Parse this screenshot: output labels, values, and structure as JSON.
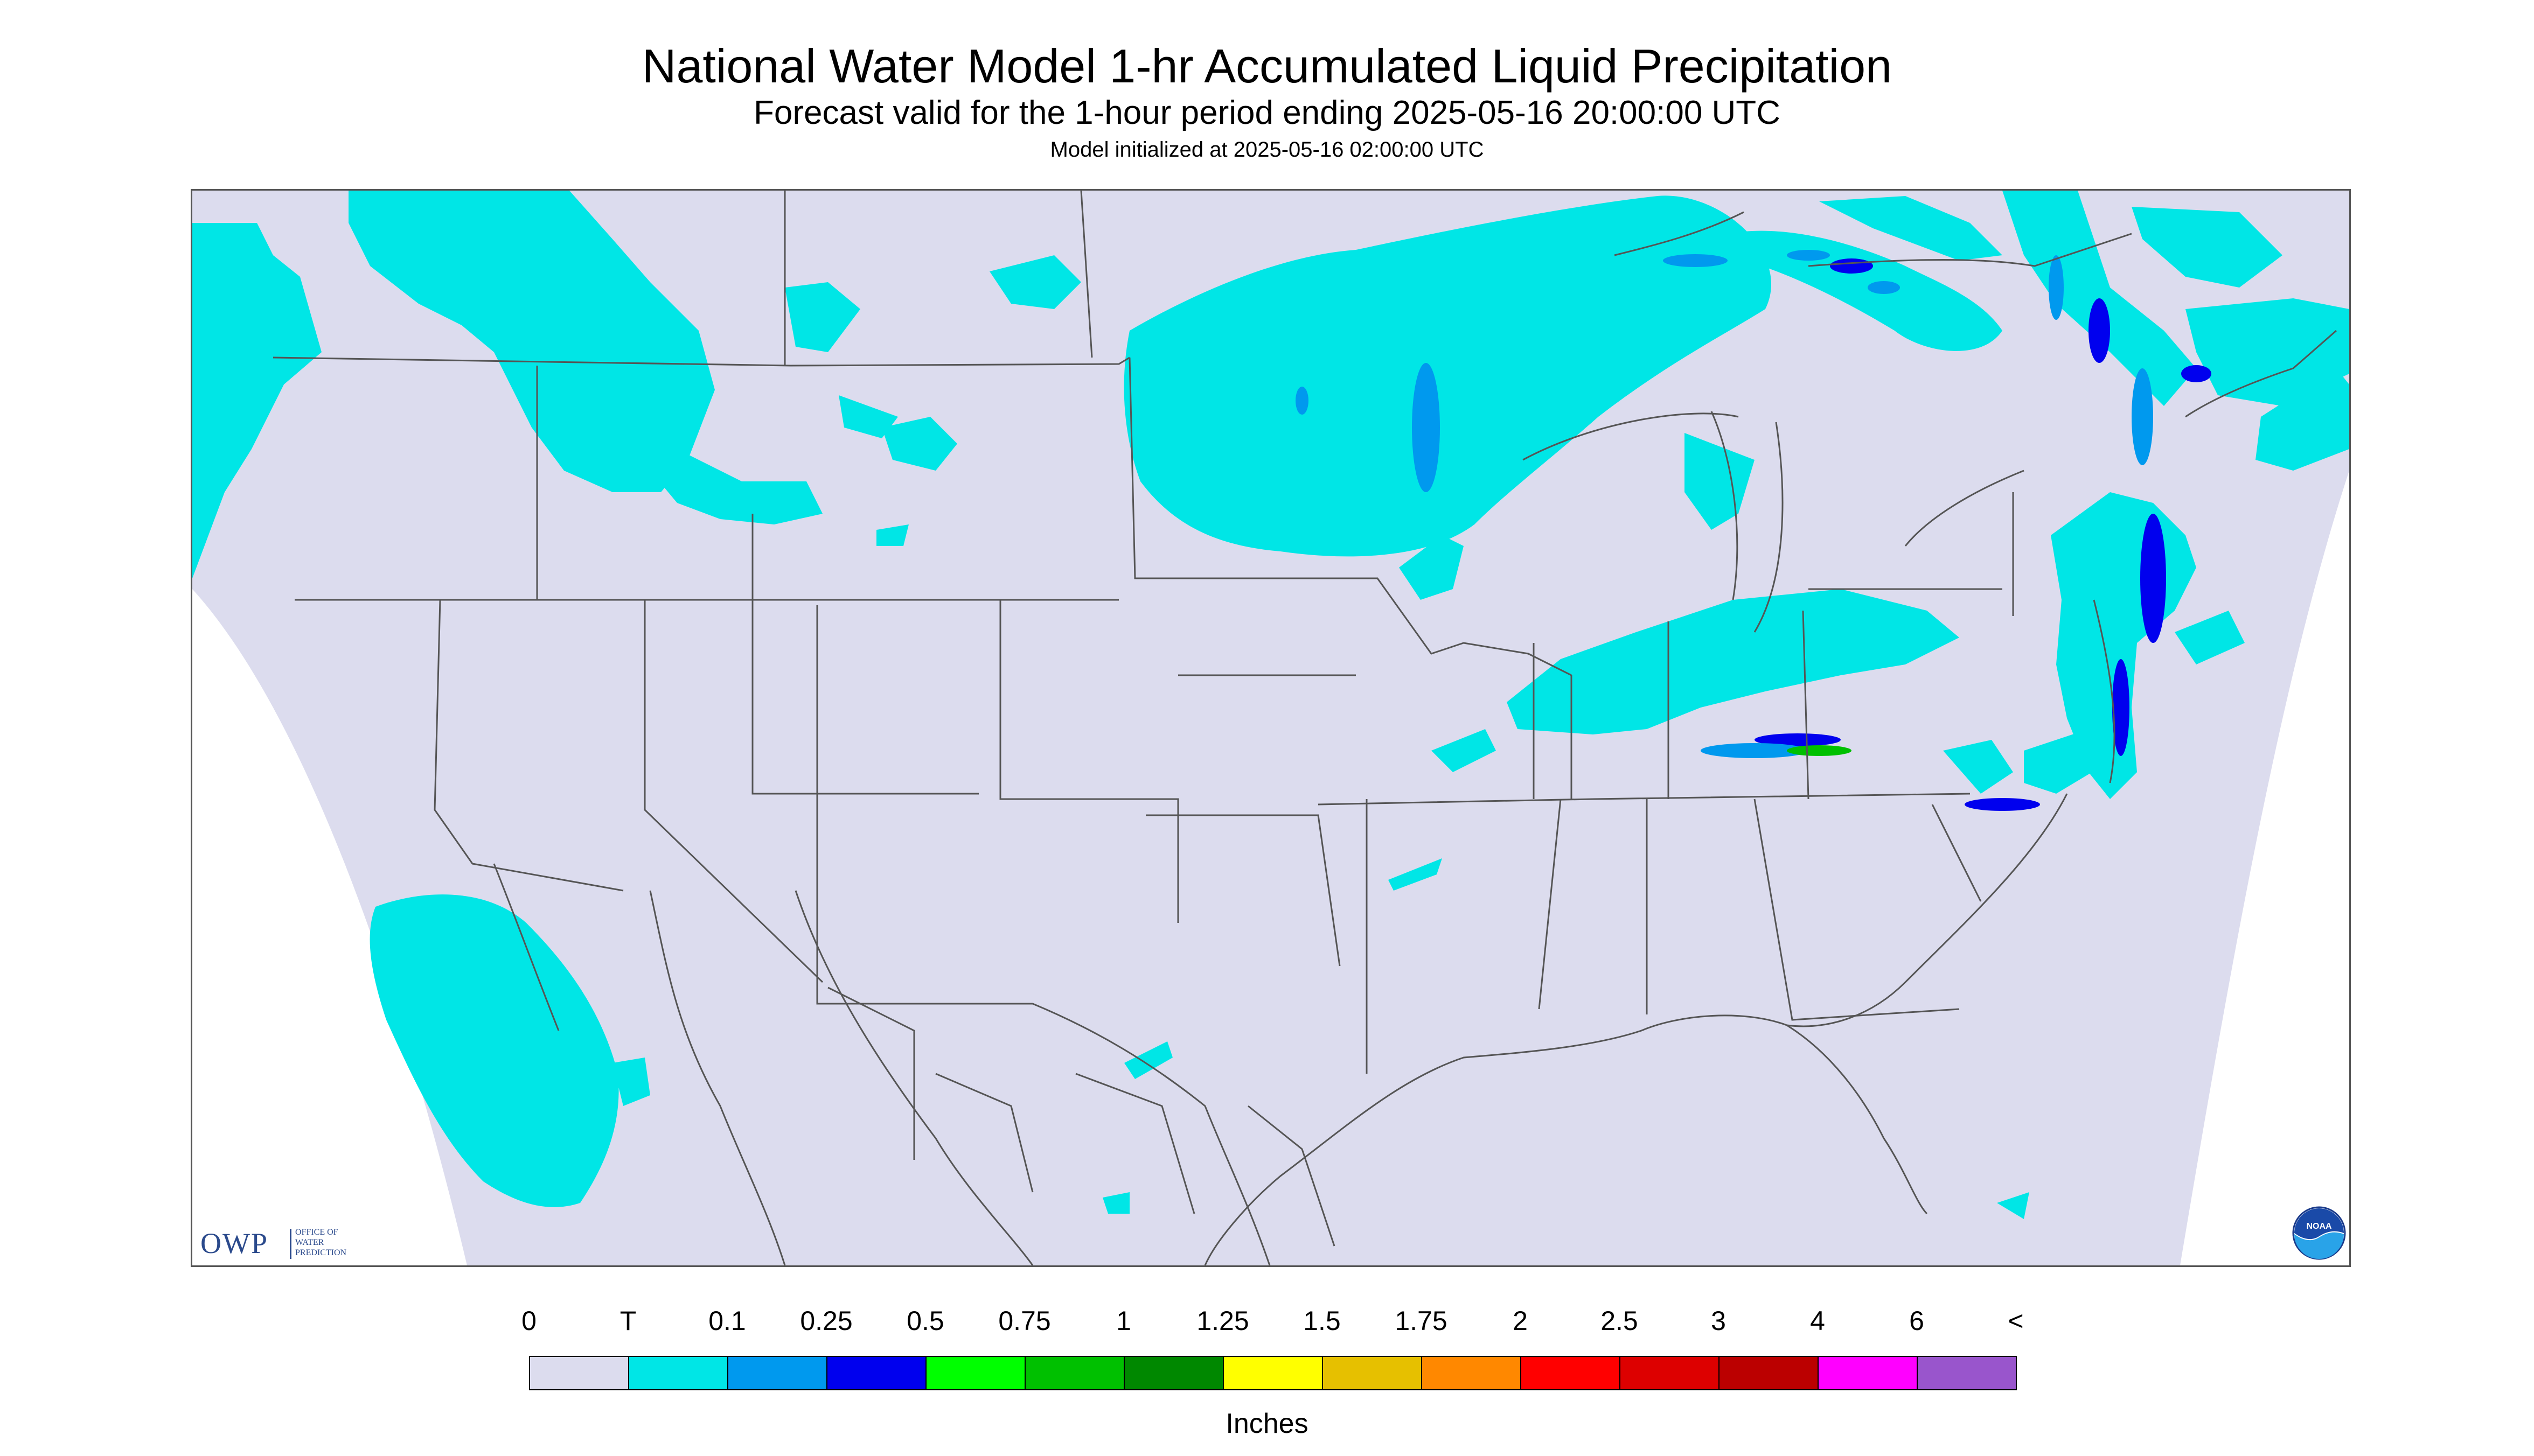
{
  "title": "National Water Model 1-hr Accumulated Liquid Precipitation",
  "subtitle": "Forecast valid for the 1-hour period ending 2025-05-16 20:00:00 UTC",
  "init_line": "Model initialized at 2025-05-16 02:00:00 UTC",
  "colors": {
    "background_no_data": "#ffffff",
    "zero": "#dcdcee",
    "trace": "#00e5e5",
    "boundary": "#555555"
  },
  "legend": {
    "tick_labels": [
      "0",
      "T",
      "0.1",
      "0.25",
      "0.5",
      "0.75",
      "1",
      "1.25",
      "1.5",
      "1.75",
      "2",
      "2.5",
      "3",
      "4",
      "6",
      "<"
    ],
    "swatch_colors": [
      "#dcdcee",
      "#00e6e6",
      "#0099ee",
      "#0000ee",
      "#00ff00",
      "#00c000",
      "#008800",
      "#ffff00",
      "#e6c000",
      "#ff8800",
      "#ff0000",
      "#dd0000",
      "#bb0000",
      "#ff00ff",
      "#9955cc"
    ],
    "unit": "Inches"
  },
  "logos": {
    "owp_mark": "OWP",
    "owp_text": [
      "OFFICE OF",
      "WATER",
      "PREDICTION"
    ],
    "noaa_mark": "NOAA"
  }
}
